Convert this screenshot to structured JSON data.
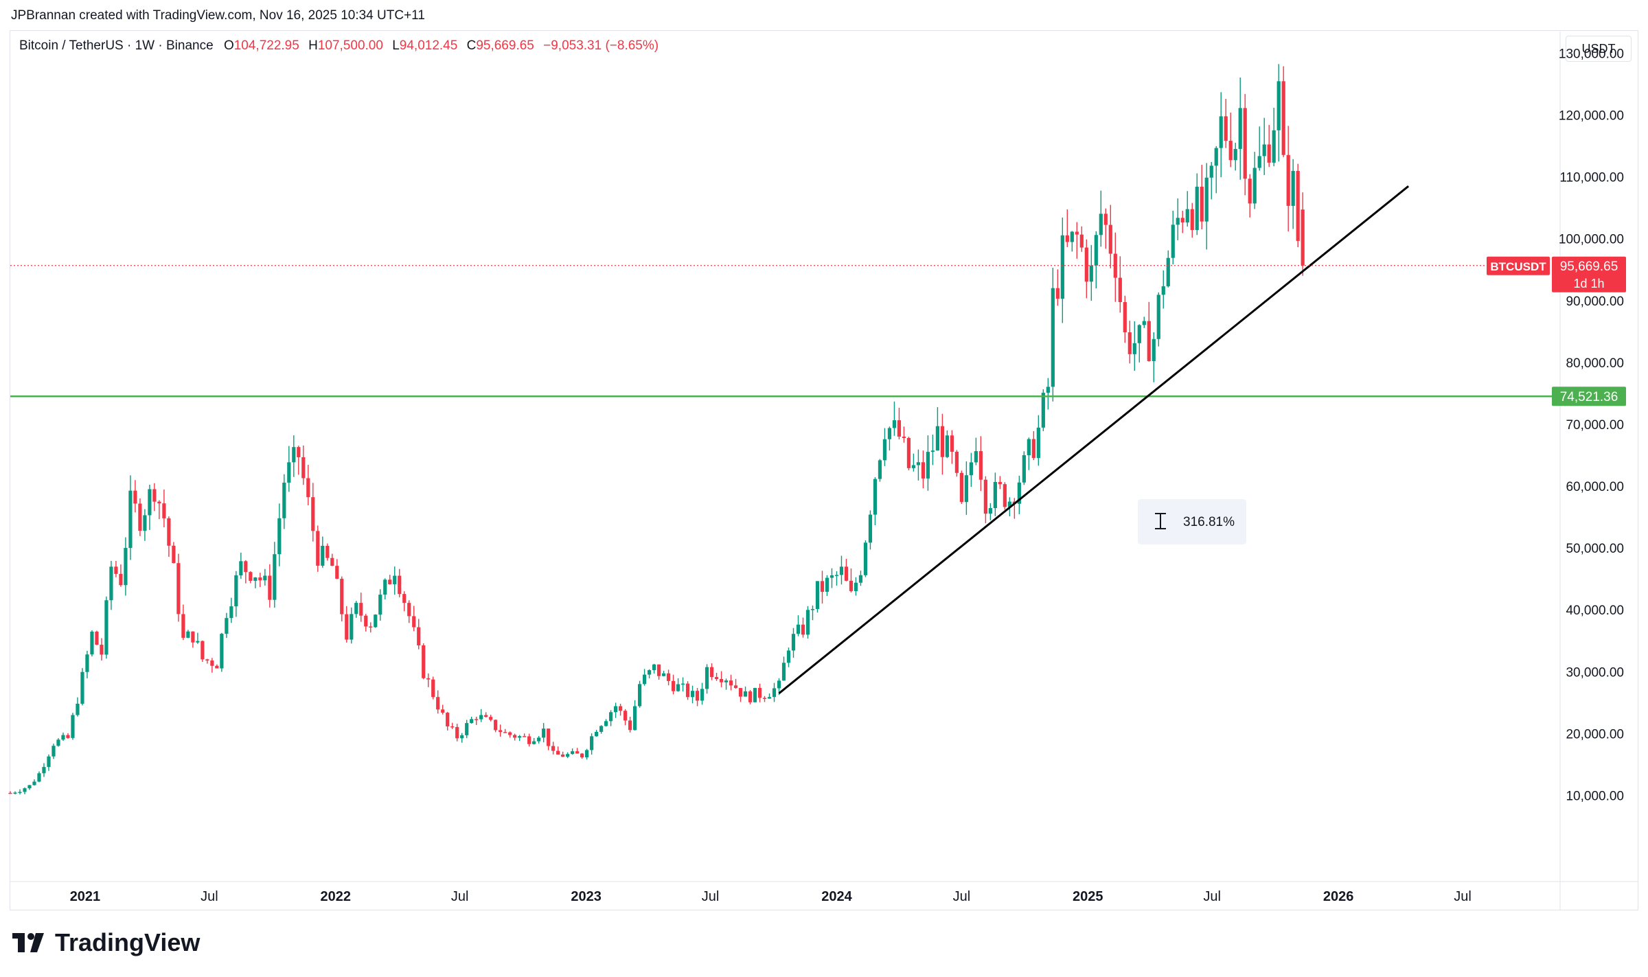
{
  "credit": "JPBrannan created with TradingView.com, Nov 16, 2025 10:34 UTC+11",
  "legend": {
    "symbol": "Bitcoin / TetherUS · 1W · Binance",
    "o_label": "O",
    "o": "104,722.95",
    "h_label": "H",
    "h": "107,500.00",
    "l_label": "L",
    "l": "94,012.45",
    "c_label": "C",
    "c": "95,669.65",
    "change": "−9,053.31 (−8.65%)"
  },
  "currency": "USDT",
  "brand": "TradingView",
  "colors": {
    "up": "#089981",
    "down": "#f23645",
    "support": "#4caf50",
    "trend": "#000000"
  },
  "chart_data": {
    "type": "candlestick",
    "y_ticks": [
      10000,
      20000,
      30000,
      40000,
      50000,
      60000,
      70000,
      80000,
      90000,
      100000,
      110000,
      120000,
      130000
    ],
    "y_tick_labels": [
      "10,000.00",
      "20,000.00",
      "30,000.00",
      "40,000.00",
      "50,000.00",
      "60,000.00",
      "70,000.00",
      "80,000.00",
      "90,000.00",
      "100,000.00",
      "110,000.00",
      "120,000.00",
      "130,000.00"
    ],
    "x_ticks": [
      {
        "label": "2021",
        "date": "2021-01-01",
        "bold": true
      },
      {
        "label": "Jul",
        "date": "2021-07-01",
        "bold": false
      },
      {
        "label": "2022",
        "date": "2022-01-01",
        "bold": true
      },
      {
        "label": "Jul",
        "date": "2022-07-01",
        "bold": false
      },
      {
        "label": "2023",
        "date": "2023-01-01",
        "bold": true
      },
      {
        "label": "Jul",
        "date": "2023-07-01",
        "bold": false
      },
      {
        "label": "2024",
        "date": "2024-01-01",
        "bold": true
      },
      {
        "label": "Jul",
        "date": "2024-07-01",
        "bold": false
      },
      {
        "label": "2025",
        "date": "2025-01-01",
        "bold": true
      },
      {
        "label": "Jul",
        "date": "2025-07-01",
        "bold": false
      },
      {
        "label": "2026",
        "date": "2026-01-01",
        "bold": true
      },
      {
        "label": "Jul",
        "date": "2026-07-01",
        "bold": false
      }
    ],
    "x_range": [
      "2020-09-14",
      "2026-11-20"
    ],
    "y_range": [
      -1500,
      133500
    ],
    "price_path": [
      [
        "2020-09-14",
        10400
      ],
      [
        "2020-10-12",
        11500
      ],
      [
        "2020-10-26",
        13500
      ],
      [
        "2020-11-16",
        18500
      ],
      [
        "2020-12-07",
        19200
      ],
      [
        "2020-12-28",
        29000
      ],
      [
        "2021-01-11",
        36000
      ],
      [
        "2021-01-25",
        33000
      ],
      [
        "2021-02-08",
        47000
      ],
      [
        "2021-02-22",
        45000
      ],
      [
        "2021-03-08",
        57000
      ],
      [
        "2021-03-22",
        55000
      ],
      [
        "2021-04-12",
        60000
      ],
      [
        "2021-04-26",
        55000
      ],
      [
        "2021-05-10",
        46000
      ],
      [
        "2021-05-24",
        35000
      ],
      [
        "2021-06-07",
        36000
      ],
      [
        "2021-06-21",
        32000
      ],
      [
        "2021-07-12",
        31500
      ],
      [
        "2021-07-26",
        40000
      ],
      [
        "2021-08-16",
        47000
      ],
      [
        "2021-09-06",
        46000
      ],
      [
        "2021-09-27",
        43000
      ],
      [
        "2021-10-18",
        61000
      ],
      [
        "2021-11-08",
        65000
      ],
      [
        "2021-11-22",
        57000
      ],
      [
        "2021-12-06",
        49000
      ],
      [
        "2021-12-27",
        47000
      ],
      [
        "2022-01-17",
        36000
      ],
      [
        "2022-01-31",
        40000
      ],
      [
        "2022-02-21",
        38000
      ],
      [
        "2022-03-28",
        47000
      ],
      [
        "2022-04-18",
        39000
      ],
      [
        "2022-05-09",
        30000
      ],
      [
        "2022-06-13",
        21000
      ],
      [
        "2022-06-27",
        19500
      ],
      [
        "2022-07-25",
        23000
      ],
      [
        "2022-08-15",
        21500
      ],
      [
        "2022-09-05",
        20000
      ],
      [
        "2022-10-10",
        19100
      ],
      [
        "2022-10-31",
        20500
      ],
      [
        "2022-11-14",
        16500
      ],
      [
        "2022-12-26",
        16500
      ],
      [
        "2023-01-16",
        21000
      ],
      [
        "2023-02-13",
        24500
      ],
      [
        "2023-03-06",
        21000
      ],
      [
        "2023-03-20",
        28000
      ],
      [
        "2023-04-10",
        30500
      ],
      [
        "2023-05-01",
        28500
      ],
      [
        "2023-06-12",
        25500
      ],
      [
        "2023-06-26",
        30500
      ],
      [
        "2023-07-24",
        29200
      ],
      [
        "2023-08-21",
        26000
      ],
      [
        "2023-09-18",
        26500
      ],
      [
        "2023-10-09",
        27500
      ],
      [
        "2023-10-23",
        34500
      ],
      [
        "2023-11-13",
        37000
      ],
      [
        "2023-12-04",
        43000
      ],
      [
        "2024-01-08",
        46000
      ],
      [
        "2024-01-22",
        42000
      ],
      [
        "2024-02-05",
        47000
      ],
      [
        "2024-02-26",
        62000
      ],
      [
        "2024-03-11",
        70000
      ],
      [
        "2024-04-01",
        68000
      ],
      [
        "2024-04-15",
        63000
      ],
      [
        "2024-05-06",
        62000
      ],
      [
        "2024-05-27",
        68500
      ],
      [
        "2024-06-17",
        64000
      ],
      [
        "2024-07-01",
        56000
      ],
      [
        "2024-07-22",
        68000
      ],
      [
        "2024-08-05",
        58000
      ],
      [
        "2024-08-26",
        59000
      ],
      [
        "2024-09-09",
        58000
      ],
      [
        "2024-09-30",
        63000
      ],
      [
        "2024-10-21",
        69000
      ],
      [
        "2024-11-04",
        76000
      ],
      [
        "2024-11-11",
        90000
      ],
      [
        "2024-11-25",
        97000
      ],
      [
        "2024-12-16",
        100000
      ],
      [
        "2025-01-06",
        94000
      ],
      [
        "2025-01-20",
        104000
      ],
      [
        "2025-02-10",
        97000
      ],
      [
        "2025-02-24",
        84000
      ],
      [
        "2025-03-17",
        83000
      ],
      [
        "2025-04-07",
        84000
      ],
      [
        "2025-04-21",
        94000
      ],
      [
        "2025-05-12",
        103000
      ],
      [
        "2025-05-26",
        107000
      ],
      [
        "2025-06-16",
        103000
      ],
      [
        "2025-06-30",
        108000
      ],
      [
        "2025-07-14",
        118000
      ],
      [
        "2025-08-04",
        116000
      ],
      [
        "2025-08-11",
        121000
      ],
      [
        "2025-08-25",
        108000
      ],
      [
        "2025-09-15",
        114000
      ],
      [
        "2025-10-06",
        123000
      ],
      [
        "2025-10-13",
        110000
      ],
      [
        "2025-10-27",
        108000
      ],
      [
        "2025-11-03",
        100000
      ],
      [
        "2025-11-10",
        95670
      ]
    ],
    "support_line": {
      "value": 74521.36,
      "label": "74,521.36"
    },
    "trend_line": {
      "start": [
        "2023-10-09",
        26500
      ],
      "end": [
        "2026-04-13",
        108500
      ]
    },
    "measure": {
      "label": "316.81%"
    },
    "last_price": {
      "symbol": "BTCUSDT",
      "value": "95,669.65",
      "countdown": "1d 1h",
      "y": 95669.65
    }
  }
}
